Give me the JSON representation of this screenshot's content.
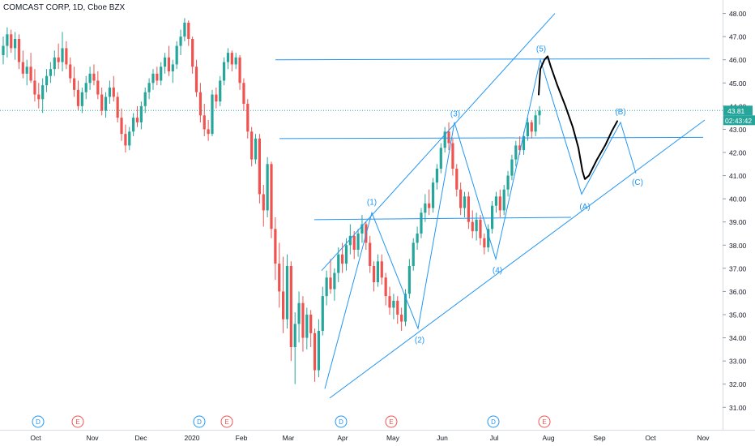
{
  "header": {
    "title": "COMCAST CORP, 1D, Cboe BZX"
  },
  "chart_data": {
    "type": "candlestick",
    "symbol": "COMCAST CORP",
    "interval": "1D",
    "exchange": "Cboe BZX",
    "ylim": [
      30.8,
      48.3
    ],
    "y_ticks": [
      "31.00",
      "32.00",
      "33.00",
      "34.00",
      "35.00",
      "36.00",
      "37.00",
      "38.00",
      "39.00",
      "40.00",
      "41.00",
      "42.00",
      "43.00",
      "44.00",
      "45.00",
      "46.00",
      "47.00",
      "48.00"
    ],
    "x_ticks": [
      "Oct",
      "Nov",
      "Dec",
      "2020",
      "Feb",
      "Mar",
      "Apr",
      "May",
      "Jun",
      "Jul",
      "Aug",
      "Sep",
      "Oct",
      "Nov"
    ],
    "price_label": "43.81",
    "countdown_label": "02:43:42",
    "last_price": 43.81,
    "colors": {
      "up": "#26a69a",
      "down": "#ef5350",
      "drawing": "#2196f3",
      "hand_drawn": "#000000",
      "price_line": "#26a69a"
    },
    "wave_labels": [
      "(1)",
      "(2)",
      "(3)",
      "(4)",
      "(5)",
      "(A)",
      "(B)",
      "(C)"
    ],
    "event_markers": [
      "D",
      "E",
      "D",
      "E",
      "D",
      "E",
      "D",
      "E"
    ],
    "candles": [
      [
        46.2,
        47.0,
        45.8,
        46.6
      ],
      [
        46.6,
        47.4,
        46.1,
        47.1
      ],
      [
        47.1,
        47.3,
        46.3,
        46.5
      ],
      [
        46.5,
        47.2,
        46.0,
        46.9
      ],
      [
        46.9,
        47.1,
        45.6,
        45.9
      ],
      [
        45.9,
        46.4,
        45.2,
        45.4
      ],
      [
        45.4,
        46.0,
        44.9,
        45.7
      ],
      [
        45.7,
        46.3,
        45.0,
        45.1
      ],
      [
        45.1,
        45.6,
        44.2,
        44.5
      ],
      [
        44.5,
        45.0,
        43.9,
        44.3
      ],
      [
        44.3,
        45.2,
        43.7,
        44.9
      ],
      [
        44.9,
        45.6,
        44.6,
        45.3
      ],
      [
        45.3,
        45.9,
        45.0,
        45.6
      ],
      [
        45.6,
        46.4,
        45.3,
        46.1
      ],
      [
        46.1,
        46.7,
        45.6,
        45.9
      ],
      [
        45.9,
        47.2,
        45.5,
        46.5
      ],
      [
        46.5,
        46.8,
        45.6,
        45.8
      ],
      [
        45.8,
        46.1,
        45.0,
        45.2
      ],
      [
        45.2,
        45.7,
        44.4,
        44.7
      ],
      [
        44.7,
        45.1,
        43.8,
        44.0
      ],
      [
        44.0,
        44.8,
        43.7,
        44.6
      ],
      [
        44.6,
        45.3,
        44.3,
        45.0
      ],
      [
        45.0,
        45.7,
        44.7,
        45.4
      ],
      [
        45.4,
        45.8,
        44.9,
        45.1
      ],
      [
        45.1,
        45.5,
        44.3,
        44.5
      ],
      [
        44.5,
        44.8,
        43.6,
        43.8
      ],
      [
        43.8,
        44.6,
        43.5,
        44.4
      ],
      [
        44.4,
        45.1,
        44.1,
        44.8
      ],
      [
        44.8,
        45.3,
        44.2,
        44.4
      ],
      [
        44.4,
        44.6,
        43.3,
        43.5
      ],
      [
        43.5,
        43.9,
        42.5,
        42.8
      ],
      [
        42.8,
        43.2,
        42.0,
        42.3
      ],
      [
        42.3,
        43.1,
        42.1,
        42.9
      ],
      [
        42.9,
        43.7,
        42.7,
        43.5
      ],
      [
        43.5,
        44.0,
        43.1,
        43.3
      ],
      [
        43.3,
        44.2,
        43.0,
        44.0
      ],
      [
        44.0,
        44.8,
        43.7,
        44.6
      ],
      [
        44.6,
        45.2,
        44.3,
        45.0
      ],
      [
        45.0,
        45.6,
        44.7,
        45.4
      ],
      [
        45.4,
        45.7,
        44.9,
        45.1
      ],
      [
        45.1,
        45.9,
        44.9,
        45.7
      ],
      [
        45.7,
        46.3,
        45.4,
        46.1
      ],
      [
        46.1,
        46.6,
        45.3,
        45.5
      ],
      [
        45.5,
        46.0,
        45.0,
        45.8
      ],
      [
        45.8,
        46.8,
        45.6,
        46.6
      ],
      [
        46.6,
        47.3,
        46.2,
        47.0
      ],
      [
        47.0,
        47.8,
        46.8,
        47.6
      ],
      [
        47.6,
        47.7,
        46.6,
        46.9
      ],
      [
        46.9,
        47.0,
        45.4,
        45.7
      ],
      [
        45.7,
        46.0,
        44.4,
        44.6
      ],
      [
        44.6,
        45.0,
        43.3,
        43.6
      ],
      [
        43.6,
        44.1,
        42.7,
        43.0
      ],
      [
        43.0,
        43.4,
        42.5,
        42.8
      ],
      [
        42.8,
        44.7,
        42.7,
        44.5
      ],
      [
        44.5,
        44.8,
        43.9,
        44.2
      ],
      [
        44.2,
        45.3,
        44.0,
        45.1
      ],
      [
        45.1,
        46.1,
        44.9,
        45.9
      ],
      [
        45.9,
        46.5,
        45.6,
        46.3
      ],
      [
        46.3,
        46.4,
        45.5,
        45.8
      ],
      [
        45.8,
        46.3,
        45.6,
        46.1
      ],
      [
        46.1,
        46.2,
        44.7,
        45.0
      ],
      [
        45.0,
        45.2,
        43.8,
        44.1
      ],
      [
        44.1,
        44.3,
        42.6,
        42.9
      ],
      [
        42.9,
        43.1,
        41.4,
        41.7
      ],
      [
        41.7,
        42.8,
        41.5,
        42.6
      ],
      [
        42.6,
        42.8,
        39.8,
        40.2
      ],
      [
        40.2,
        40.6,
        38.8,
        39.5
      ],
      [
        39.5,
        41.8,
        39.2,
        41.5
      ],
      [
        41.5,
        41.6,
        38.3,
        38.7
      ],
      [
        38.7,
        39.2,
        36.5,
        37.2
      ],
      [
        37.2,
        38.1,
        35.3,
        36.0
      ],
      [
        36.0,
        37.5,
        34.2,
        34.8
      ],
      [
        34.8,
        37.6,
        34.4,
        37.1
      ],
      [
        37.1,
        37.3,
        33.0,
        33.6
      ],
      [
        33.6,
        35.1,
        32.0,
        34.6
      ],
      [
        34.6,
        36.0,
        33.8,
        35.5
      ],
      [
        35.5,
        35.8,
        33.4,
        34.0
      ],
      [
        34.0,
        35.3,
        33.5,
        35.0
      ],
      [
        35.0,
        35.2,
        33.6,
        34.2
      ],
      [
        34.2,
        34.4,
        32.1,
        32.6
      ],
      [
        32.6,
        34.8,
        32.3,
        34.3
      ],
      [
        34.3,
        36.2,
        34.1,
        35.8
      ],
      [
        35.8,
        36.9,
        35.4,
        36.6
      ],
      [
        36.6,
        37.4,
        35.9,
        36.1
      ],
      [
        36.1,
        37.0,
        35.6,
        36.8
      ],
      [
        36.8,
        37.9,
        36.4,
        37.6
      ],
      [
        37.6,
        38.1,
        36.8,
        37.2
      ],
      [
        37.2,
        38.3,
        36.9,
        38.0
      ],
      [
        38.0,
        38.9,
        37.6,
        38.4
      ],
      [
        38.4,
        38.6,
        37.4,
        37.8
      ],
      [
        37.8,
        38.7,
        37.5,
        38.5
      ],
      [
        38.5,
        39.3,
        38.1,
        38.9
      ],
      [
        38.9,
        39.0,
        37.8,
        38.1
      ],
      [
        38.1,
        38.4,
        36.8,
        37.1
      ],
      [
        37.1,
        37.3,
        36.0,
        36.4
      ],
      [
        36.4,
        37.6,
        36.2,
        37.3
      ],
      [
        37.3,
        37.6,
        36.3,
        36.6
      ],
      [
        36.6,
        36.8,
        35.4,
        35.8
      ],
      [
        35.8,
        36.2,
        35.0,
        35.3
      ],
      [
        35.3,
        35.9,
        34.8,
        35.6
      ],
      [
        35.6,
        35.8,
        34.6,
        35.0
      ],
      [
        35.0,
        35.3,
        34.3,
        34.7
      ],
      [
        34.7,
        36.1,
        34.5,
        35.9
      ],
      [
        35.9,
        37.4,
        35.7,
        37.1
      ],
      [
        37.1,
        38.3,
        36.9,
        38.1
      ],
      [
        38.1,
        38.8,
        37.8,
        38.5
      ],
      [
        38.5,
        39.6,
        38.3,
        39.4
      ],
      [
        39.4,
        40.2,
        39.0,
        39.8
      ],
      [
        39.8,
        40.4,
        39.3,
        39.6
      ],
      [
        39.6,
        40.9,
        39.4,
        40.7
      ],
      [
        40.7,
        41.5,
        40.4,
        41.3
      ],
      [
        41.3,
        42.4,
        41.1,
        42.2
      ],
      [
        42.2,
        43.1,
        42.0,
        42.9
      ],
      [
        42.9,
        43.3,
        42.1,
        42.4
      ],
      [
        42.4,
        42.6,
        41.0,
        41.3
      ],
      [
        41.3,
        41.5,
        40.1,
        40.4
      ],
      [
        40.4,
        40.7,
        39.3,
        39.6
      ],
      [
        39.6,
        40.3,
        39.2,
        40.1
      ],
      [
        40.1,
        40.3,
        38.7,
        39.0
      ],
      [
        39.0,
        39.5,
        38.3,
        38.6
      ],
      [
        38.6,
        39.4,
        38.2,
        39.1
      ],
      [
        39.1,
        39.3,
        38.0,
        38.3
      ],
      [
        38.3,
        38.5,
        37.6,
        37.9
      ],
      [
        37.9,
        38.9,
        37.7,
        38.7
      ],
      [
        38.7,
        39.9,
        38.5,
        39.7
      ],
      [
        39.7,
        40.3,
        39.4,
        40.1
      ],
      [
        40.1,
        40.4,
        39.2,
        39.5
      ],
      [
        39.5,
        40.6,
        39.3,
        40.4
      ],
      [
        40.4,
        41.2,
        40.1,
        41.0
      ],
      [
        41.0,
        41.9,
        40.8,
        41.7
      ],
      [
        41.7,
        42.5,
        41.4,
        42.3
      ],
      [
        42.3,
        42.7,
        41.9,
        42.1
      ],
      [
        42.1,
        42.9,
        41.9,
        42.7
      ],
      [
        42.7,
        43.5,
        42.5,
        43.3
      ],
      [
        43.3,
        43.4,
        42.6,
        42.9
      ],
      [
        42.9,
        43.8,
        42.7,
        43.6
      ],
      [
        43.6,
        44.0,
        43.2,
        43.81
      ]
    ]
  }
}
